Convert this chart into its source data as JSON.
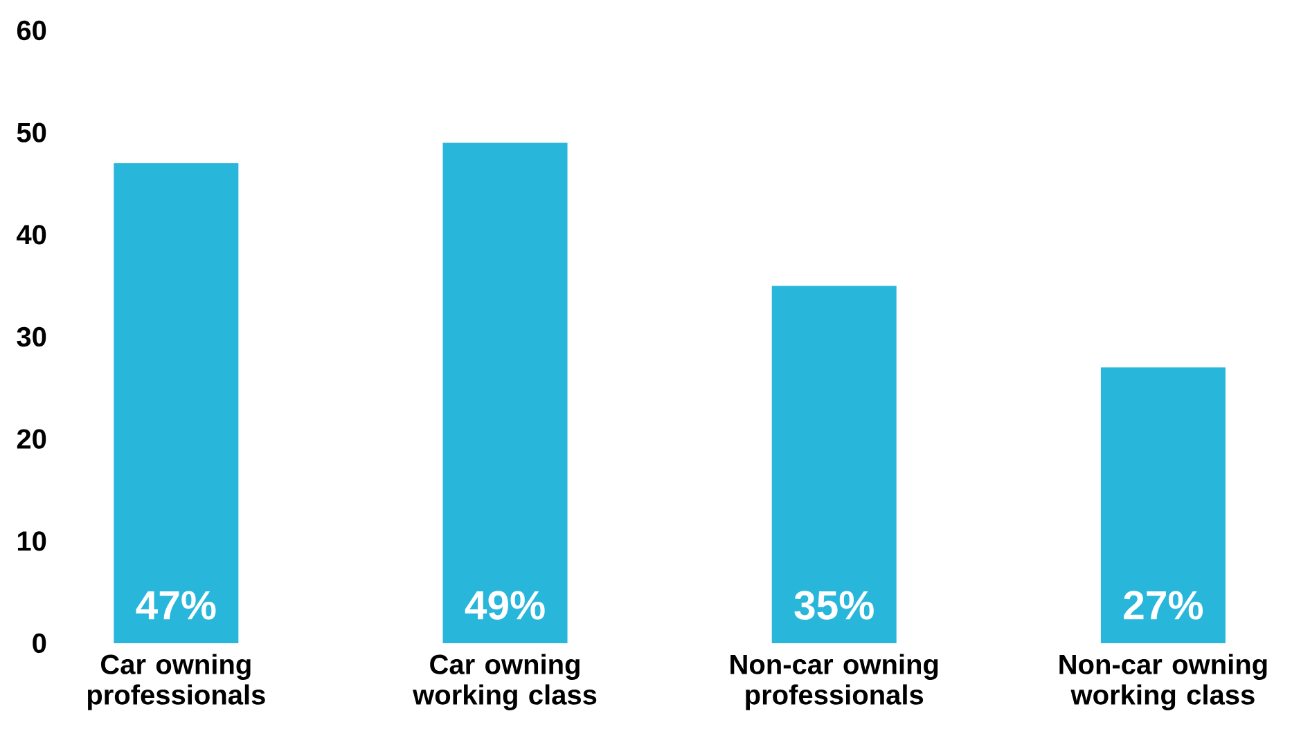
{
  "chart_data": {
    "type": "bar",
    "categories": [
      "Car owning professionals",
      "Car owning working class",
      "Non-car owning professionals",
      "Non-car owning working class"
    ],
    "values": [
      47,
      49,
      35,
      27
    ],
    "value_labels": [
      "47%",
      "49%",
      "35%",
      "27%"
    ],
    "color": "#29b6db",
    "ylim": [
      0,
      60
    ],
    "yticks": [
      0,
      10,
      20,
      30,
      40,
      50,
      60
    ]
  }
}
